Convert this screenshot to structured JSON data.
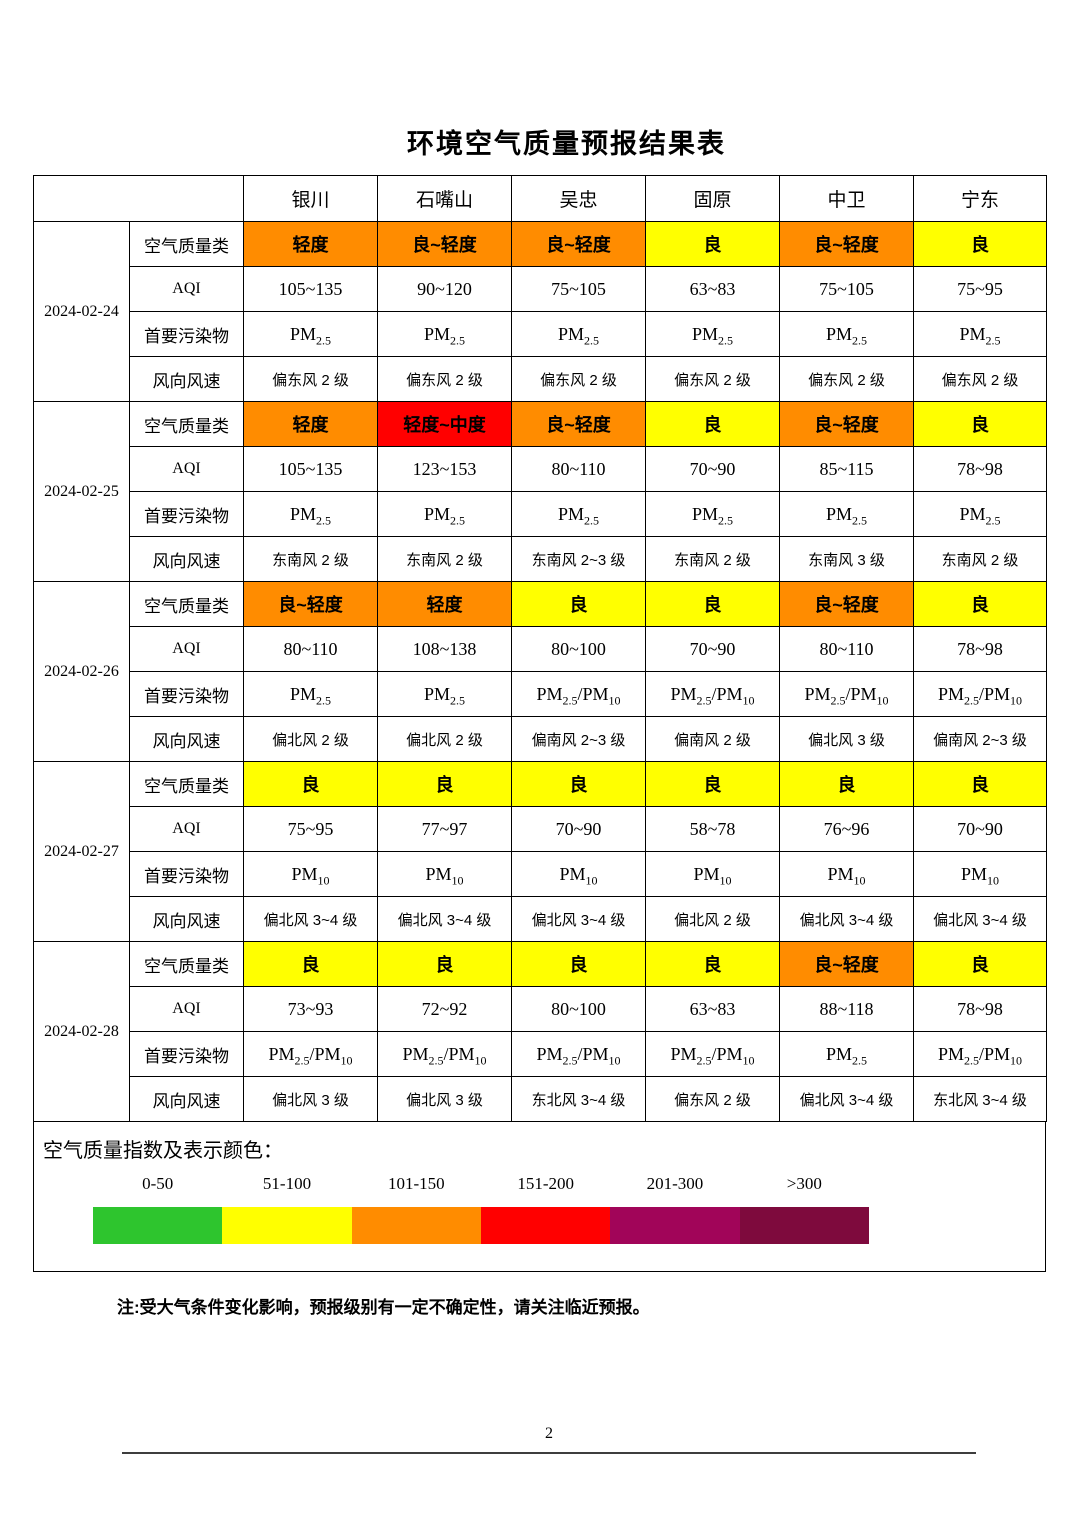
{
  "page": {
    "title": "环境空气质量预报结果表",
    "note": "注:受大气条件变化影响，预报级别有一定不确定性，请关注临近预报。",
    "page_number": "2"
  },
  "cell_colors": {
    "yellow": "#FFFF00",
    "orange": "#FF8C00",
    "red": "#FF0000"
  },
  "table": {
    "cities": [
      "银川",
      "石嘴山",
      "吴忠",
      "固原",
      "中卫",
      "宁东"
    ],
    "row_labels": {
      "quality": "空气质量类",
      "aqi": "AQI",
      "pollutant": "首要污染物",
      "wind": "风向风速"
    },
    "groups": [
      {
        "date": "2024-02-24",
        "quality": [
          {
            "text": "轻度",
            "level": "orange"
          },
          {
            "text": "良~轻度",
            "level": "orange"
          },
          {
            "text": "良~轻度",
            "level": "orange"
          },
          {
            "text": "良",
            "level": "yellow"
          },
          {
            "text": "良~轻度",
            "level": "orange"
          },
          {
            "text": "良",
            "level": "yellow"
          }
        ],
        "aqi": [
          "105~135",
          "90~120",
          "75~105",
          "63~83",
          "75~105",
          "75~95"
        ],
        "pollutant": [
          "PM2.5",
          "PM2.5",
          "PM2.5",
          "PM2.5",
          "PM2.5",
          "PM2.5"
        ],
        "wind": [
          "偏东风 2 级",
          "偏东风 2 级",
          "偏东风 2 级",
          "偏东风 2 级",
          "偏东风 2 级",
          "偏东风 2 级"
        ]
      },
      {
        "date": "2024-02-25",
        "quality": [
          {
            "text": "轻度",
            "level": "orange"
          },
          {
            "text": "轻度~中度",
            "level": "red"
          },
          {
            "text": "良~轻度",
            "level": "orange"
          },
          {
            "text": "良",
            "level": "yellow"
          },
          {
            "text": "良~轻度",
            "level": "orange"
          },
          {
            "text": "良",
            "level": "yellow"
          }
        ],
        "aqi": [
          "105~135",
          "123~153",
          "80~110",
          "70~90",
          "85~115",
          "78~98"
        ],
        "pollutant": [
          "PM2.5",
          "PM2.5",
          "PM2.5",
          "PM2.5",
          "PM2.5",
          "PM2.5"
        ],
        "wind": [
          "东南风 2 级",
          "东南风 2 级",
          "东南风 2~3 级",
          "东南风 2 级",
          "东南风 3 级",
          "东南风 2 级"
        ]
      },
      {
        "date": "2024-02-26",
        "quality": [
          {
            "text": "良~轻度",
            "level": "orange"
          },
          {
            "text": "轻度",
            "level": "orange"
          },
          {
            "text": "良",
            "level": "yellow"
          },
          {
            "text": "良",
            "level": "yellow"
          },
          {
            "text": "良~轻度",
            "level": "orange"
          },
          {
            "text": "良",
            "level": "yellow"
          }
        ],
        "aqi": [
          "80~110",
          "108~138",
          "80~100",
          "70~90",
          "80~110",
          "78~98"
        ],
        "pollutant": [
          "PM2.5",
          "PM2.5",
          "PM2.5/PM10",
          "PM2.5/PM10",
          "PM2.5/PM10",
          "PM2.5/PM10"
        ],
        "wind": [
          "偏北风 2 级",
          "偏北风 2 级",
          "偏南风 2~3 级",
          "偏南风 2 级",
          "偏北风 3 级",
          "偏南风 2~3 级"
        ]
      },
      {
        "date": "2024-02-27",
        "quality": [
          {
            "text": "良",
            "level": "yellow"
          },
          {
            "text": "良",
            "level": "yellow"
          },
          {
            "text": "良",
            "level": "yellow"
          },
          {
            "text": "良",
            "level": "yellow"
          },
          {
            "text": "良",
            "level": "yellow"
          },
          {
            "text": "良",
            "level": "yellow"
          }
        ],
        "aqi": [
          "75~95",
          "77~97",
          "70~90",
          "58~78",
          "76~96",
          "70~90"
        ],
        "pollutant": [
          "PM10",
          "PM10",
          "PM10",
          "PM10",
          "PM10",
          "PM10"
        ],
        "wind": [
          "偏北风 3~4 级",
          "偏北风 3~4 级",
          "偏北风 3~4 级",
          "偏北风 2 级",
          "偏北风 3~4 级",
          "偏北风 3~4 级"
        ]
      },
      {
        "date": "2024-02-28",
        "quality": [
          {
            "text": "良",
            "level": "yellow"
          },
          {
            "text": "良",
            "level": "yellow"
          },
          {
            "text": "良",
            "level": "yellow"
          },
          {
            "text": "良",
            "level": "yellow"
          },
          {
            "text": "良~轻度",
            "level": "orange"
          },
          {
            "text": "良",
            "level": "yellow"
          }
        ],
        "aqi": [
          "73~93",
          "72~92",
          "80~100",
          "63~83",
          "88~118",
          "78~98"
        ],
        "pollutant": [
          "PM2.5/PM10",
          "PM2.5/PM10",
          "PM2.5/PM10",
          "PM2.5/PM10",
          "PM2.5",
          "PM2.5/PM10"
        ],
        "wind": [
          "偏北风 3 级",
          "偏北风 3 级",
          "东北风 3~4 级",
          "偏东风 2 级",
          "偏北风 3~4 级",
          "东北风 3~4 级"
        ]
      }
    ]
  },
  "legend": {
    "heading": "空气质量指数及表示颜色：",
    "ranges": [
      "0-50",
      "51-100",
      "101-150",
      "151-200",
      "201-300",
      ">300"
    ],
    "colors": [
      "#2EC52E",
      "#FFFF00",
      "#FF8C00",
      "#FF0000",
      "#A10559",
      "#7E0A3D"
    ]
  }
}
